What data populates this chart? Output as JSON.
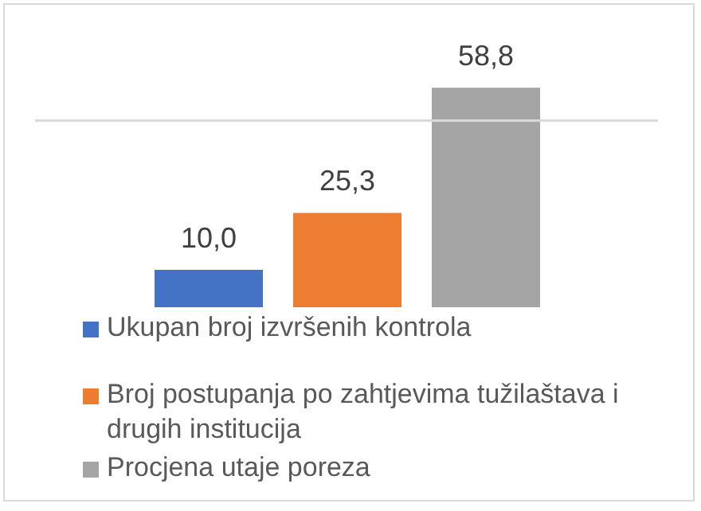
{
  "chart_data": {
    "type": "bar",
    "categories": [
      null
    ],
    "series": [
      {
        "name": "Ukupan broj izvršenih kontrola",
        "color": "#4472c4",
        "values": [
          10.0
        ],
        "value_labels": [
          "10,0"
        ]
      },
      {
        "name": "Broj postupanja po zahtjevima tužilaštava i drugih institucija",
        "color": "#ed7d31",
        "values": [
          25.3
        ],
        "value_labels": [
          "25,3"
        ]
      },
      {
        "name": "Procjena utaje poreza",
        "color": "#a5a5a5",
        "values": [
          58.8
        ],
        "value_labels": [
          "58,8"
        ]
      }
    ],
    "ref_lines": [
      {
        "axis": "y",
        "value": 50
      }
    ],
    "tick_labels": false,
    "legend": "bottom"
  }
}
